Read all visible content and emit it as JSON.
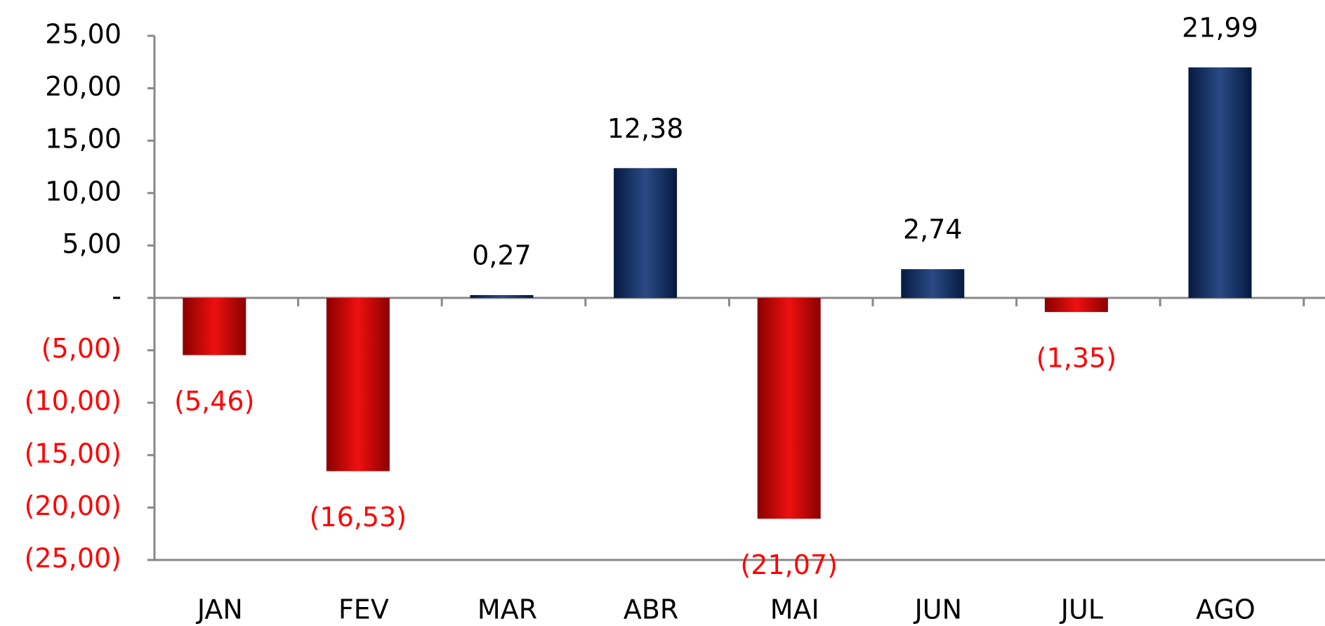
{
  "chart_data": {
    "type": "bar",
    "categories": [
      "JAN",
      "FEV",
      "MAR",
      "ABR",
      "MAI",
      "JUN",
      "JUL",
      "AGO"
    ],
    "values": [
      -5.46,
      -16.53,
      0.27,
      12.38,
      -21.07,
      2.74,
      -1.35,
      21.99
    ],
    "value_labels": [
      "(5,46)",
      "(16,53)",
      "0,27",
      "12,38",
      "(21,07)",
      "2,74",
      "(1,35)",
      "21,99"
    ],
    "color": "#0d2a5e",
    "negative_color": "#c00000",
    "negative_label_color": "#ff0000",
    "ylim": [
      -25,
      25
    ],
    "yticks": [
      {
        "value": 25,
        "label": "25,00"
      },
      {
        "value": 20,
        "label": "20,00"
      },
      {
        "value": 15,
        "label": "15,00"
      },
      {
        "value": 10,
        "label": "10,00"
      },
      {
        "value": 5,
        "label": "5,00"
      },
      {
        "value": 0,
        "label": "-"
      },
      {
        "value": -5,
        "label": "(5,00)"
      },
      {
        "value": -10,
        "label": "(10,00)"
      },
      {
        "value": -15,
        "label": "(15,00)"
      },
      {
        "value": -20,
        "label": "(20,00)"
      },
      {
        "value": -25,
        "label": "(25,00)"
      }
    ]
  }
}
